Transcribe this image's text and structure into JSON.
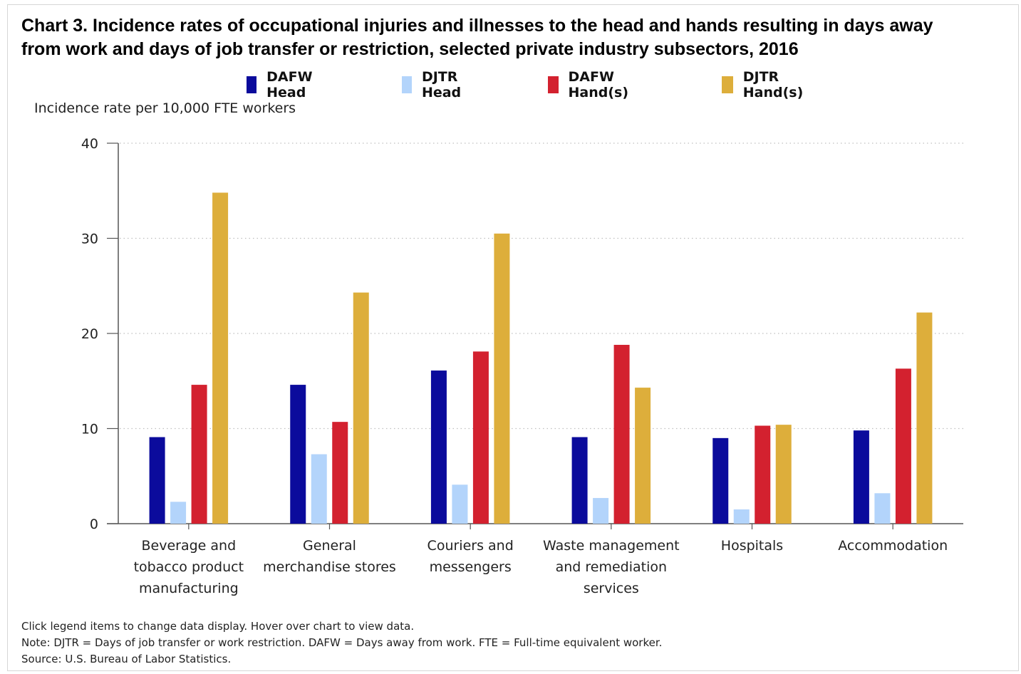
{
  "title": "Chart 3. Incidence rates of occupational injuries and illnesses to the head and hands resulting in days away from work and days of job transfer or restriction, selected private industry subsectors, 2016",
  "footer": {
    "instructions": "Click legend items to change data display. Hover over chart to view data.",
    "note": "Note: DJTR = Days of job transfer or work restriction. DAFW = Days away from work. FTE = Full-time equivalent worker.",
    "source": "Source: U.S. Bureau of Labor Statistics."
  },
  "chart_data": {
    "type": "bar",
    "title": "Chart 3. Incidence rates of occupational injuries and illnesses to the head and hands resulting in days away from work and days of job transfer or restriction, selected private industry subsectors, 2016",
    "ylabel": "Incidence rate per 10,000 FTE workers",
    "xlabel": "",
    "ylim": [
      0,
      40
    ],
    "yticks": [
      0,
      10,
      20,
      30,
      40
    ],
    "grid": "horizontal dotted",
    "legend": "top",
    "categories": [
      [
        "Beverage and",
        "tobacco product",
        "manufacturing"
      ],
      [
        "General",
        "merchandise stores"
      ],
      [
        "Couriers and",
        "messengers"
      ],
      [
        "Waste management",
        "and remediation",
        "services"
      ],
      [
        "Hospitals"
      ],
      [
        "Accommodation"
      ]
    ],
    "series": [
      {
        "name": "DAFW Head",
        "color": "#0b0b9c",
        "values": [
          9.1,
          14.6,
          16.1,
          9.1,
          9.0,
          9.8
        ]
      },
      {
        "name": "DJTR Head",
        "color": "#b3d4fb",
        "values": [
          2.3,
          7.3,
          4.1,
          2.7,
          1.5,
          3.2
        ]
      },
      {
        "name": "DAFW Hand(s)",
        "color": "#d3212f",
        "values": [
          14.6,
          10.7,
          18.1,
          18.8,
          10.3,
          16.3
        ]
      },
      {
        "name": "DJTR Hand(s)",
        "color": "#ddae3b",
        "values": [
          34.8,
          24.3,
          30.5,
          14.3,
          10.4,
          22.2
        ]
      }
    ]
  }
}
